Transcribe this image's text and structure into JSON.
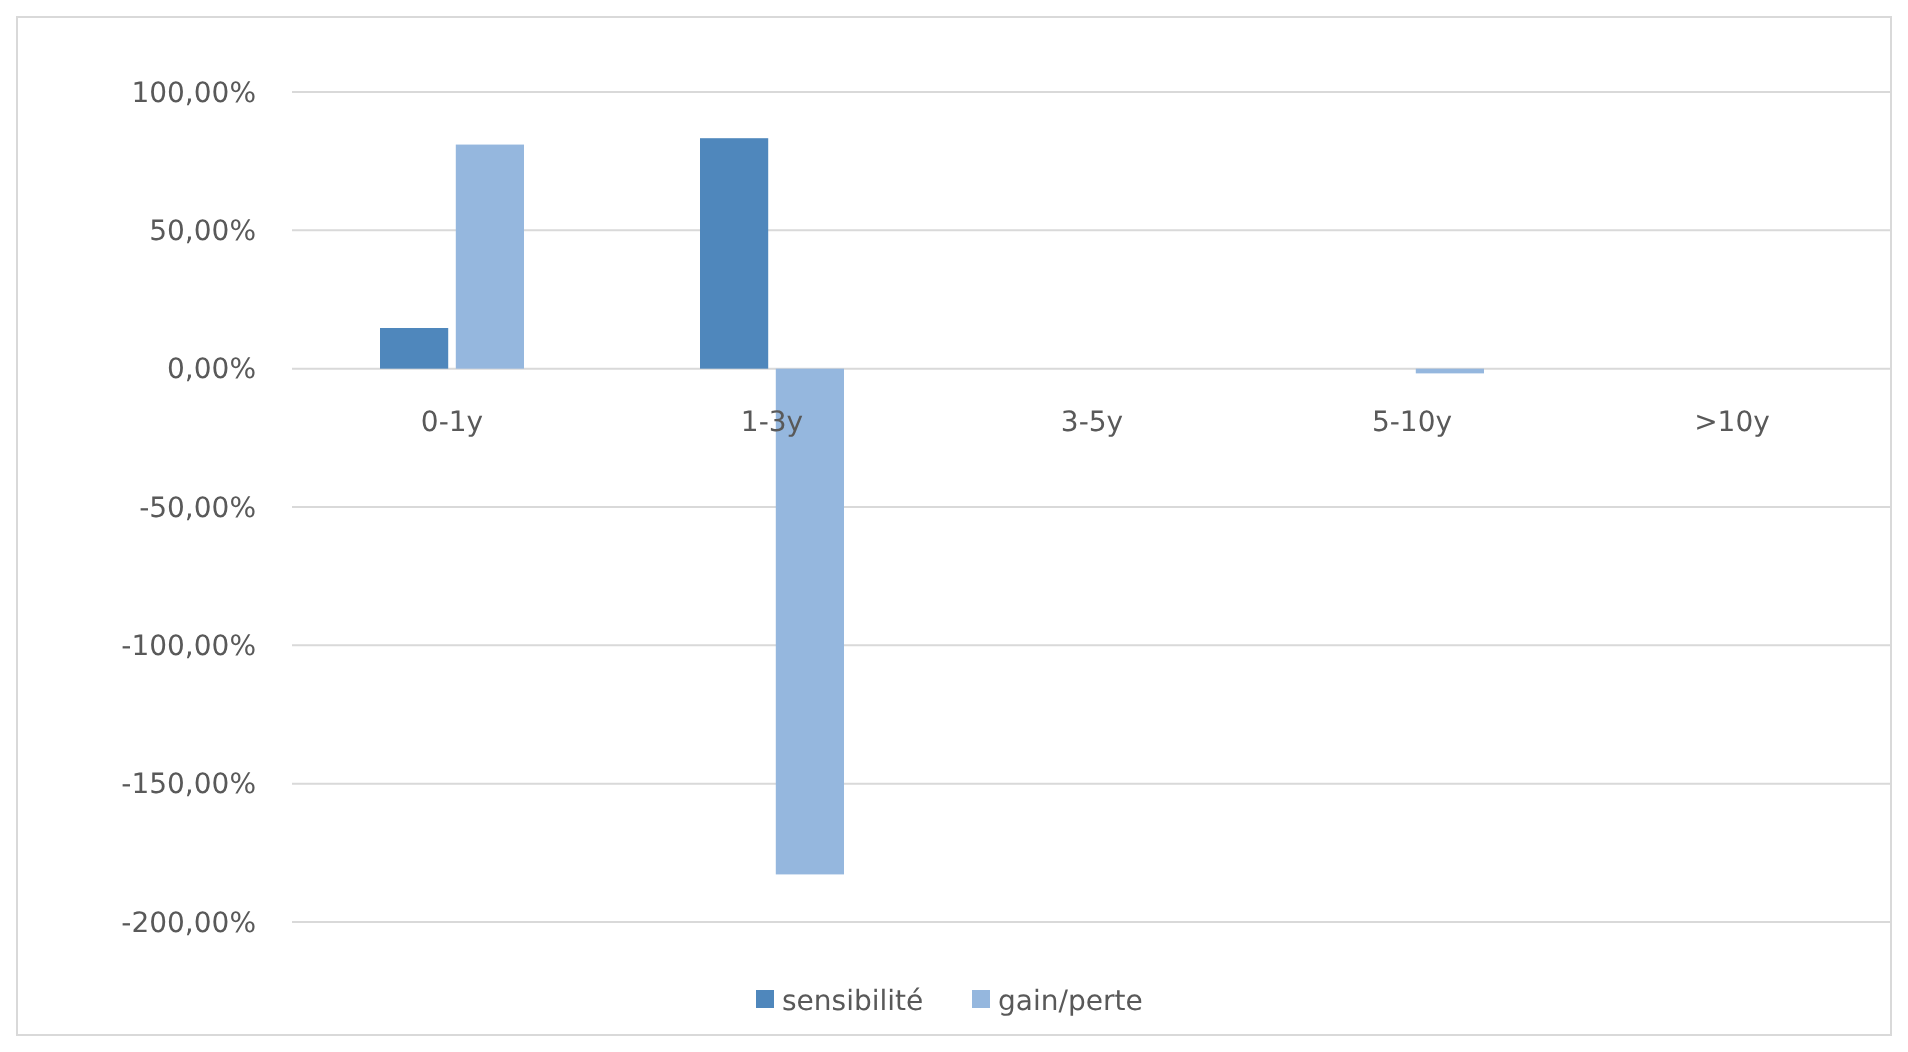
{
  "chart_data": {
    "type": "bar",
    "categories": [
      "0-1y",
      "1-3y",
      "3-5y",
      "5-10y",
      ">10y"
    ],
    "series": [
      {
        "name": "sensibilité",
        "color": "#4f87bc",
        "values": [
          14.7,
          83.3,
          0,
          0,
          0
        ]
      },
      {
        "name": "gain/perte",
        "color": "#95b7de",
        "values": [
          81,
          -182.8,
          0,
          -1.7,
          0
        ]
      }
    ],
    "ylim": [
      -200,
      100
    ],
    "yticks": [
      {
        "value": -200,
        "label": "-200,00%"
      },
      {
        "value": -150,
        "label": "-150,00%"
      },
      {
        "value": -100,
        "label": "-100,00%"
      },
      {
        "value": -50,
        "label": "-50,00%"
      },
      {
        "value": 0,
        "label": "0,00%"
      },
      {
        "value": 50,
        "label": "50,00%"
      },
      {
        "value": 100,
        "label": "100,00%"
      }
    ],
    "grid": "y",
    "legend": "bottom"
  }
}
